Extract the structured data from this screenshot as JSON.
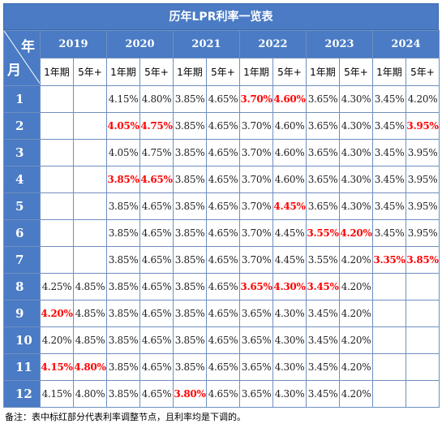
{
  "title": "历年LPR利率一览表",
  "corner": {
    "year_label": "年",
    "month_label": "月"
  },
  "years": [
    "2019",
    "2020",
    "2021",
    "2022",
    "2023",
    "2024"
  ],
  "terms": [
    "1年期",
    "5年+"
  ],
  "highlight_color": "#ff0000",
  "header_color": "#4a7bc4",
  "rows": [
    {
      "month": "1",
      "cells": [
        {
          "v": "",
          "h": false
        },
        {
          "v": "",
          "h": false
        },
        {
          "v": "4.15%",
          "h": false
        },
        {
          "v": "4.80%",
          "h": false
        },
        {
          "v": "3.85%",
          "h": false
        },
        {
          "v": "4.65%",
          "h": false
        },
        {
          "v": "3.70%",
          "h": true
        },
        {
          "v": "4.60%",
          "h": true
        },
        {
          "v": "3.65%",
          "h": false
        },
        {
          "v": "4.30%",
          "h": false
        },
        {
          "v": "3.45%",
          "h": false
        },
        {
          "v": "4.20%",
          "h": false
        }
      ]
    },
    {
      "month": "2",
      "cells": [
        {
          "v": "",
          "h": false
        },
        {
          "v": "",
          "h": false
        },
        {
          "v": "4.05%",
          "h": true
        },
        {
          "v": "4.75%",
          "h": true
        },
        {
          "v": "3.85%",
          "h": false
        },
        {
          "v": "4.65%",
          "h": false
        },
        {
          "v": "3.70%",
          "h": false
        },
        {
          "v": "4.60%",
          "h": false
        },
        {
          "v": "3.65%",
          "h": false
        },
        {
          "v": "4.30%",
          "h": false
        },
        {
          "v": "3.45%",
          "h": false
        },
        {
          "v": "3.95%",
          "h": true
        }
      ]
    },
    {
      "month": "3",
      "cells": [
        {
          "v": "",
          "h": false
        },
        {
          "v": "",
          "h": false
        },
        {
          "v": "4.05%",
          "h": false
        },
        {
          "v": "4.75%",
          "h": false
        },
        {
          "v": "3.85%",
          "h": false
        },
        {
          "v": "4.65%",
          "h": false
        },
        {
          "v": "3.70%",
          "h": false
        },
        {
          "v": "4.60%",
          "h": false
        },
        {
          "v": "3.65%",
          "h": false
        },
        {
          "v": "4.30%",
          "h": false
        },
        {
          "v": "3.45%",
          "h": false
        },
        {
          "v": "3.95%",
          "h": false
        }
      ]
    },
    {
      "month": "4",
      "cells": [
        {
          "v": "",
          "h": false
        },
        {
          "v": "",
          "h": false
        },
        {
          "v": "3.85%",
          "h": true
        },
        {
          "v": "4.65%",
          "h": true
        },
        {
          "v": "3.85%",
          "h": false
        },
        {
          "v": "4.65%",
          "h": false
        },
        {
          "v": "3.70%",
          "h": false
        },
        {
          "v": "4.60%",
          "h": false
        },
        {
          "v": "3.65%",
          "h": false
        },
        {
          "v": "4.30%",
          "h": false
        },
        {
          "v": "3.45%",
          "h": false
        },
        {
          "v": "3.95%",
          "h": false
        }
      ]
    },
    {
      "month": "5",
      "cells": [
        {
          "v": "",
          "h": false
        },
        {
          "v": "",
          "h": false
        },
        {
          "v": "3.85%",
          "h": false
        },
        {
          "v": "4.65%",
          "h": false
        },
        {
          "v": "3.85%",
          "h": false
        },
        {
          "v": "4.65%",
          "h": false
        },
        {
          "v": "3.70%",
          "h": false
        },
        {
          "v": "4.45%",
          "h": true
        },
        {
          "v": "3.65%",
          "h": false
        },
        {
          "v": "4.30%",
          "h": false
        },
        {
          "v": "3.45%",
          "h": false
        },
        {
          "v": "3.95%",
          "h": false
        }
      ]
    },
    {
      "month": "6",
      "cells": [
        {
          "v": "",
          "h": false
        },
        {
          "v": "",
          "h": false
        },
        {
          "v": "3.85%",
          "h": false
        },
        {
          "v": "4.65%",
          "h": false
        },
        {
          "v": "3.85%",
          "h": false
        },
        {
          "v": "4.65%",
          "h": false
        },
        {
          "v": "3.70%",
          "h": false
        },
        {
          "v": "4.45%",
          "h": false
        },
        {
          "v": "3.55%",
          "h": true
        },
        {
          "v": "4.20%",
          "h": true
        },
        {
          "v": "3.45%",
          "h": false
        },
        {
          "v": "3.95%",
          "h": false
        }
      ]
    },
    {
      "month": "7",
      "cells": [
        {
          "v": "",
          "h": false
        },
        {
          "v": "",
          "h": false
        },
        {
          "v": "3.85%",
          "h": false
        },
        {
          "v": "4.65%",
          "h": false
        },
        {
          "v": "3.85%",
          "h": false
        },
        {
          "v": "4.65%",
          "h": false
        },
        {
          "v": "3.70%",
          "h": false
        },
        {
          "v": "4.45%",
          "h": false
        },
        {
          "v": "3.55%",
          "h": false
        },
        {
          "v": "4.20%",
          "h": false
        },
        {
          "v": "3.35%",
          "h": true
        },
        {
          "v": "3.85%",
          "h": true
        }
      ]
    },
    {
      "month": "8",
      "cells": [
        {
          "v": "4.25%",
          "h": false
        },
        {
          "v": "4.85%",
          "h": false
        },
        {
          "v": "3.85%",
          "h": false
        },
        {
          "v": "4.65%",
          "h": false
        },
        {
          "v": "3.85%",
          "h": false
        },
        {
          "v": "4.65%",
          "h": false
        },
        {
          "v": "3.65%",
          "h": true
        },
        {
          "v": "4.30%",
          "h": true
        },
        {
          "v": "3.45%",
          "h": true
        },
        {
          "v": "4.20%",
          "h": false
        },
        {
          "v": "",
          "h": false
        },
        {
          "v": "",
          "h": false
        }
      ]
    },
    {
      "month": "9",
      "cells": [
        {
          "v": "4.20%",
          "h": true
        },
        {
          "v": "4.85%",
          "h": false
        },
        {
          "v": "3.85%",
          "h": false
        },
        {
          "v": "4.65%",
          "h": false
        },
        {
          "v": "3.85%",
          "h": false
        },
        {
          "v": "4.65%",
          "h": false
        },
        {
          "v": "3.65%",
          "h": false
        },
        {
          "v": "4.30%",
          "h": false
        },
        {
          "v": "3.45%",
          "h": false
        },
        {
          "v": "4.20%",
          "h": false
        },
        {
          "v": "",
          "h": false
        },
        {
          "v": "",
          "h": false
        }
      ]
    },
    {
      "month": "10",
      "cells": [
        {
          "v": "4.20%",
          "h": false
        },
        {
          "v": "4.85%",
          "h": false
        },
        {
          "v": "3.85%",
          "h": false
        },
        {
          "v": "4.65%",
          "h": false
        },
        {
          "v": "3.85%",
          "h": false
        },
        {
          "v": "4.65%",
          "h": false
        },
        {
          "v": "3.65%",
          "h": false
        },
        {
          "v": "4.30%",
          "h": false
        },
        {
          "v": "3.45%",
          "h": false
        },
        {
          "v": "4.20%",
          "h": false
        },
        {
          "v": "",
          "h": false
        },
        {
          "v": "",
          "h": false
        }
      ]
    },
    {
      "month": "11",
      "cells": [
        {
          "v": "4.15%",
          "h": true
        },
        {
          "v": "4.80%",
          "h": true
        },
        {
          "v": "3.85%",
          "h": false
        },
        {
          "v": "4.65%",
          "h": false
        },
        {
          "v": "3.85%",
          "h": false
        },
        {
          "v": "4.65%",
          "h": false
        },
        {
          "v": "3.65%",
          "h": false
        },
        {
          "v": "4.30%",
          "h": false
        },
        {
          "v": "3.45%",
          "h": false
        },
        {
          "v": "4.20%",
          "h": false
        },
        {
          "v": "",
          "h": false
        },
        {
          "v": "",
          "h": false
        }
      ]
    },
    {
      "month": "12",
      "cells": [
        {
          "v": "4.15%",
          "h": false
        },
        {
          "v": "4.80%",
          "h": false
        },
        {
          "v": "3.85%",
          "h": false
        },
        {
          "v": "4.65%",
          "h": false
        },
        {
          "v": "3.80%",
          "h": true
        },
        {
          "v": "4.65%",
          "h": false
        },
        {
          "v": "3.65%",
          "h": false
        },
        {
          "v": "4.30%",
          "h": false
        },
        {
          "v": "3.45%",
          "h": false
        },
        {
          "v": "4.20%",
          "h": false
        },
        {
          "v": "",
          "h": false
        },
        {
          "v": "",
          "h": false
        }
      ]
    }
  ],
  "note": "备注：表中标红部分代表利率调整节点，且利率均是下调的。"
}
